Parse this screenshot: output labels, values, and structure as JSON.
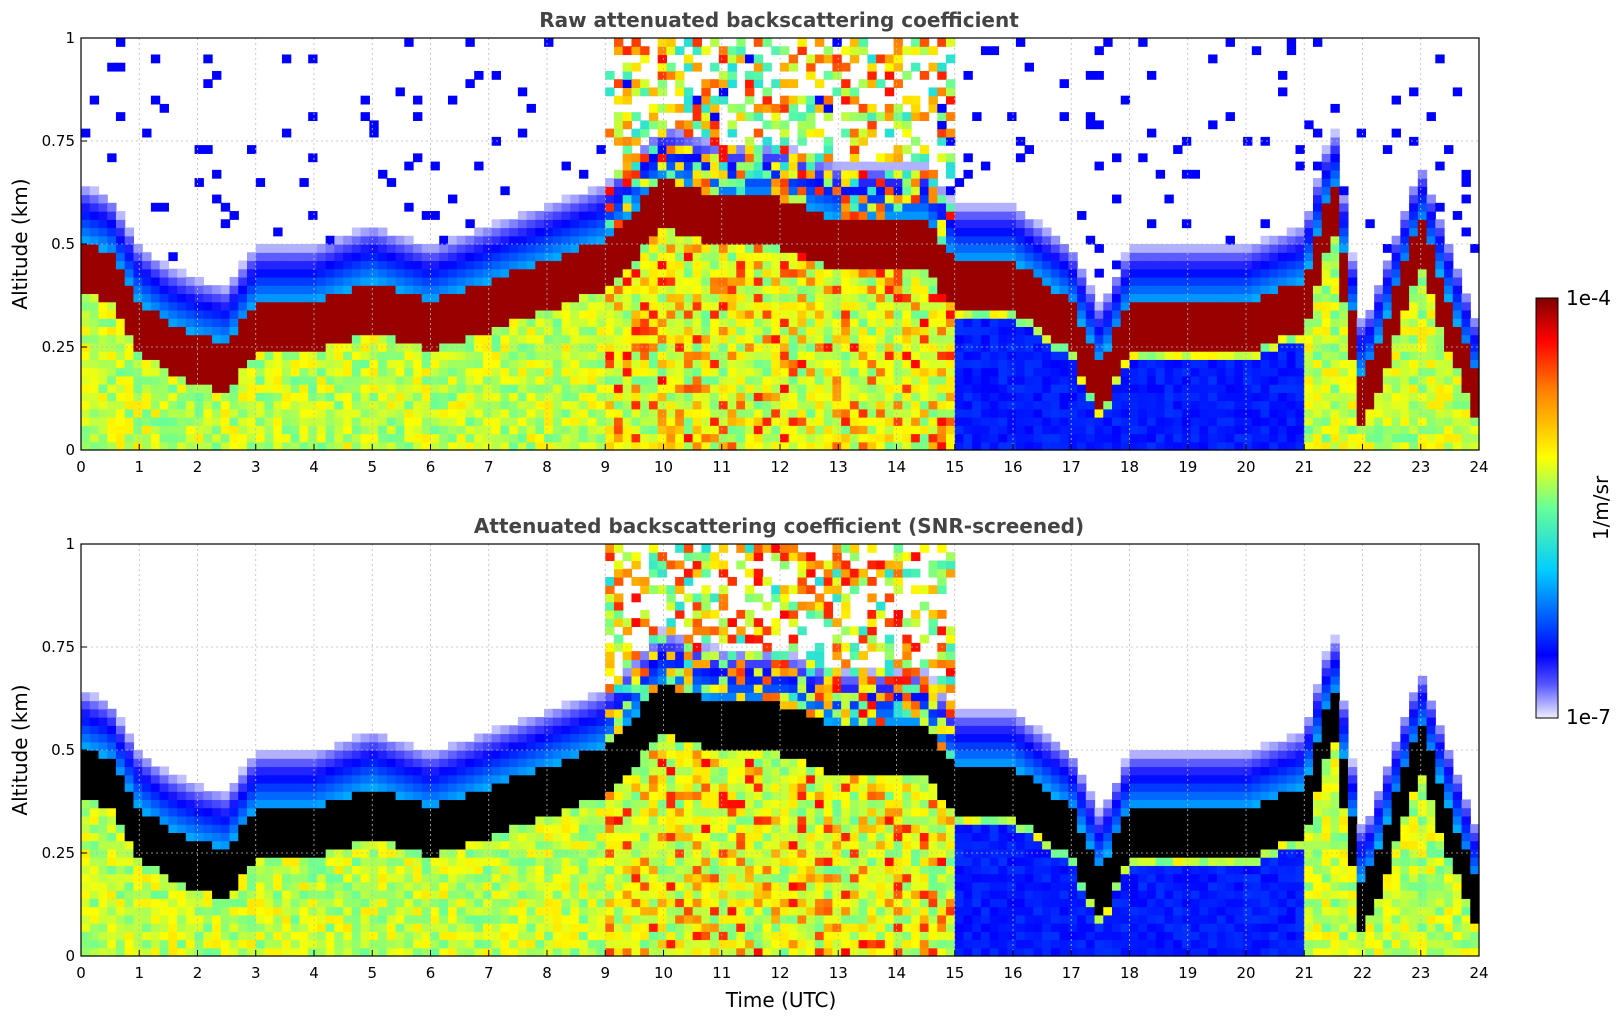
{
  "chart_data": [
    {
      "type": "heatmap",
      "title": "Raw attenuated backscattering coefficient",
      "xlabel": "",
      "ylabel": "Altitude (km)",
      "xlim": [
        0,
        24
      ],
      "ylim": [
        0,
        1
      ],
      "x_ticks": [
        "0",
        "1",
        "2",
        "3",
        "4",
        "5",
        "6",
        "7",
        "8",
        "9",
        "10",
        "11",
        "12",
        "13",
        "14",
        "15",
        "16",
        "17",
        "18",
        "19",
        "20",
        "21",
        "22",
        "23",
        "24"
      ],
      "y_ticks": [
        "0",
        "0.25",
        "0.5",
        "0.75",
        "1"
      ],
      "grid": true,
      "screened": false,
      "boundary_layer_top_km": {
        "x_utc": [
          0,
          0.5,
          1,
          1.5,
          2,
          2.5,
          3,
          4,
          5,
          6,
          7,
          8,
          9,
          10,
          11,
          12,
          13,
          14,
          14.5,
          15,
          16,
          17,
          17.5,
          18,
          19,
          20,
          21,
          21.5,
          22,
          23,
          24
        ],
        "altitude": [
          0.45,
          0.42,
          0.3,
          0.25,
          0.22,
          0.2,
          0.3,
          0.3,
          0.35,
          0.3,
          0.35,
          0.4,
          0.45,
          0.6,
          0.55,
          0.55,
          0.5,
          0.5,
          0.5,
          0.4,
          0.4,
          0.3,
          0.15,
          0.3,
          0.3,
          0.3,
          0.35,
          0.6,
          0.1,
          0.5,
          0.1
        ]
      }
    },
    {
      "type": "heatmap",
      "title": "Attenuated backscattering coefficient (SNR-screened)",
      "xlabel": "Time (UTC)",
      "ylabel": "Altitude (km)",
      "xlim": [
        0,
        24
      ],
      "ylim": [
        0,
        1
      ],
      "x_ticks": [
        "0",
        "1",
        "2",
        "3",
        "4",
        "5",
        "6",
        "7",
        "8",
        "9",
        "10",
        "11",
        "12",
        "13",
        "14",
        "15",
        "16",
        "17",
        "18",
        "19",
        "20",
        "21",
        "22",
        "23",
        "24"
      ],
      "y_ticks": [
        "0",
        "0.25",
        "0.5",
        "0.75",
        "1"
      ],
      "grid": true,
      "screened": true
    }
  ],
  "colorbar": {
    "max_label": "1e-4",
    "min_label": "1e-7",
    "unit_label": "1/m/sr",
    "colormap": "jet",
    "colors": [
      "#eeeeff",
      "#0000ff",
      "#00ffff",
      "#ffff00",
      "#ff0000",
      "#800000"
    ]
  }
}
